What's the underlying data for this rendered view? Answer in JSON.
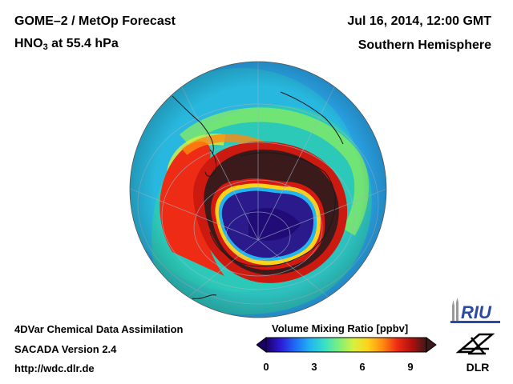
{
  "header": {
    "title": "GOME–2 / MetOp Forecast",
    "species": "HNO",
    "species_sub": "3",
    "level": " at 55.4 hPa",
    "datetime": "Jul 16, 2014, 12:00 GMT",
    "hemisphere": "Southern Hemisphere"
  },
  "footer": {
    "line1": "4DVar Chemical Data Assimilation",
    "line2": "SACADA Version 2.4",
    "line3": "http://wdc.dlr.de"
  },
  "colorbar": {
    "title": "Volume Mixing Ratio [ppbv]",
    "ticks": [
      "0",
      "3",
      "6",
      "9"
    ],
    "range": [
      0,
      10
    ],
    "colors": [
      "#1a0066",
      "#2b1bd6",
      "#1e6cf5",
      "#22b4f0",
      "#38e0c8",
      "#7cf07a",
      "#d8f040",
      "#ffd21a",
      "#ff8a10",
      "#ee2b14",
      "#b0100e",
      "#3a1a1a"
    ]
  },
  "logos": {
    "riu": "RIU",
    "dlr": "DLR"
  },
  "map": {
    "projection": "orthographic, south pole view",
    "ocean_color": "#2aa4e8",
    "vortex_core_color": "#2a1a8c",
    "collar_color": "#3a1a1a",
    "ring_color": "#e62a18"
  }
}
